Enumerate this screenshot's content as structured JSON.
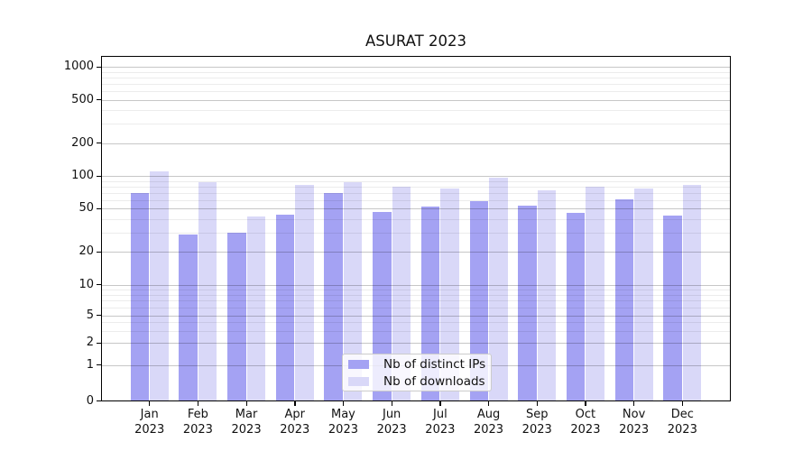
{
  "chart": {
    "title": "ASURAT 2023",
    "background_color": "#ffffff",
    "series_colors": [
      "#a4a2f3",
      "#d9d8f8"
    ],
    "grid_major_color": "#c6c6c6",
    "grid_minor_color": "#ececec",
    "legend": {
      "items": [
        {
          "label": "Nb of distinct IPs",
          "swatch": "#a4a2f3"
        },
        {
          "label": "Nb of downloads",
          "swatch": "#d9d8f8"
        }
      ],
      "position": "lower center"
    }
  },
  "chart_data": {
    "type": "bar",
    "title": "ASURAT 2023",
    "categories": [
      "Jan 2023",
      "Feb 2023",
      "Mar 2023",
      "Apr 2023",
      "May 2023",
      "Jun 2023",
      "Jul 2023",
      "Aug 2023",
      "Sep 2023",
      "Oct 2023",
      "Nov 2023",
      "Dec 2023"
    ],
    "series": [
      {
        "name": "Nb of distinct IPs",
        "values": [
          70,
          29,
          30,
          44,
          69,
          47,
          52,
          59,
          53,
          46,
          61,
          43
        ]
      },
      {
        "name": "Nb of downloads",
        "values": [
          110,
          87,
          42,
          83,
          88,
          79,
          76,
          96,
          74,
          79,
          77,
          83
        ]
      }
    ],
    "xlabel": "",
    "ylabel": "",
    "yscale": "symlog",
    "yticks": [
      0,
      1,
      2,
      5,
      10,
      20,
      50,
      100,
      200,
      500,
      1000
    ],
    "ylim": [
      0,
      1270
    ],
    "grid": true,
    "legend_position": "lower center"
  }
}
